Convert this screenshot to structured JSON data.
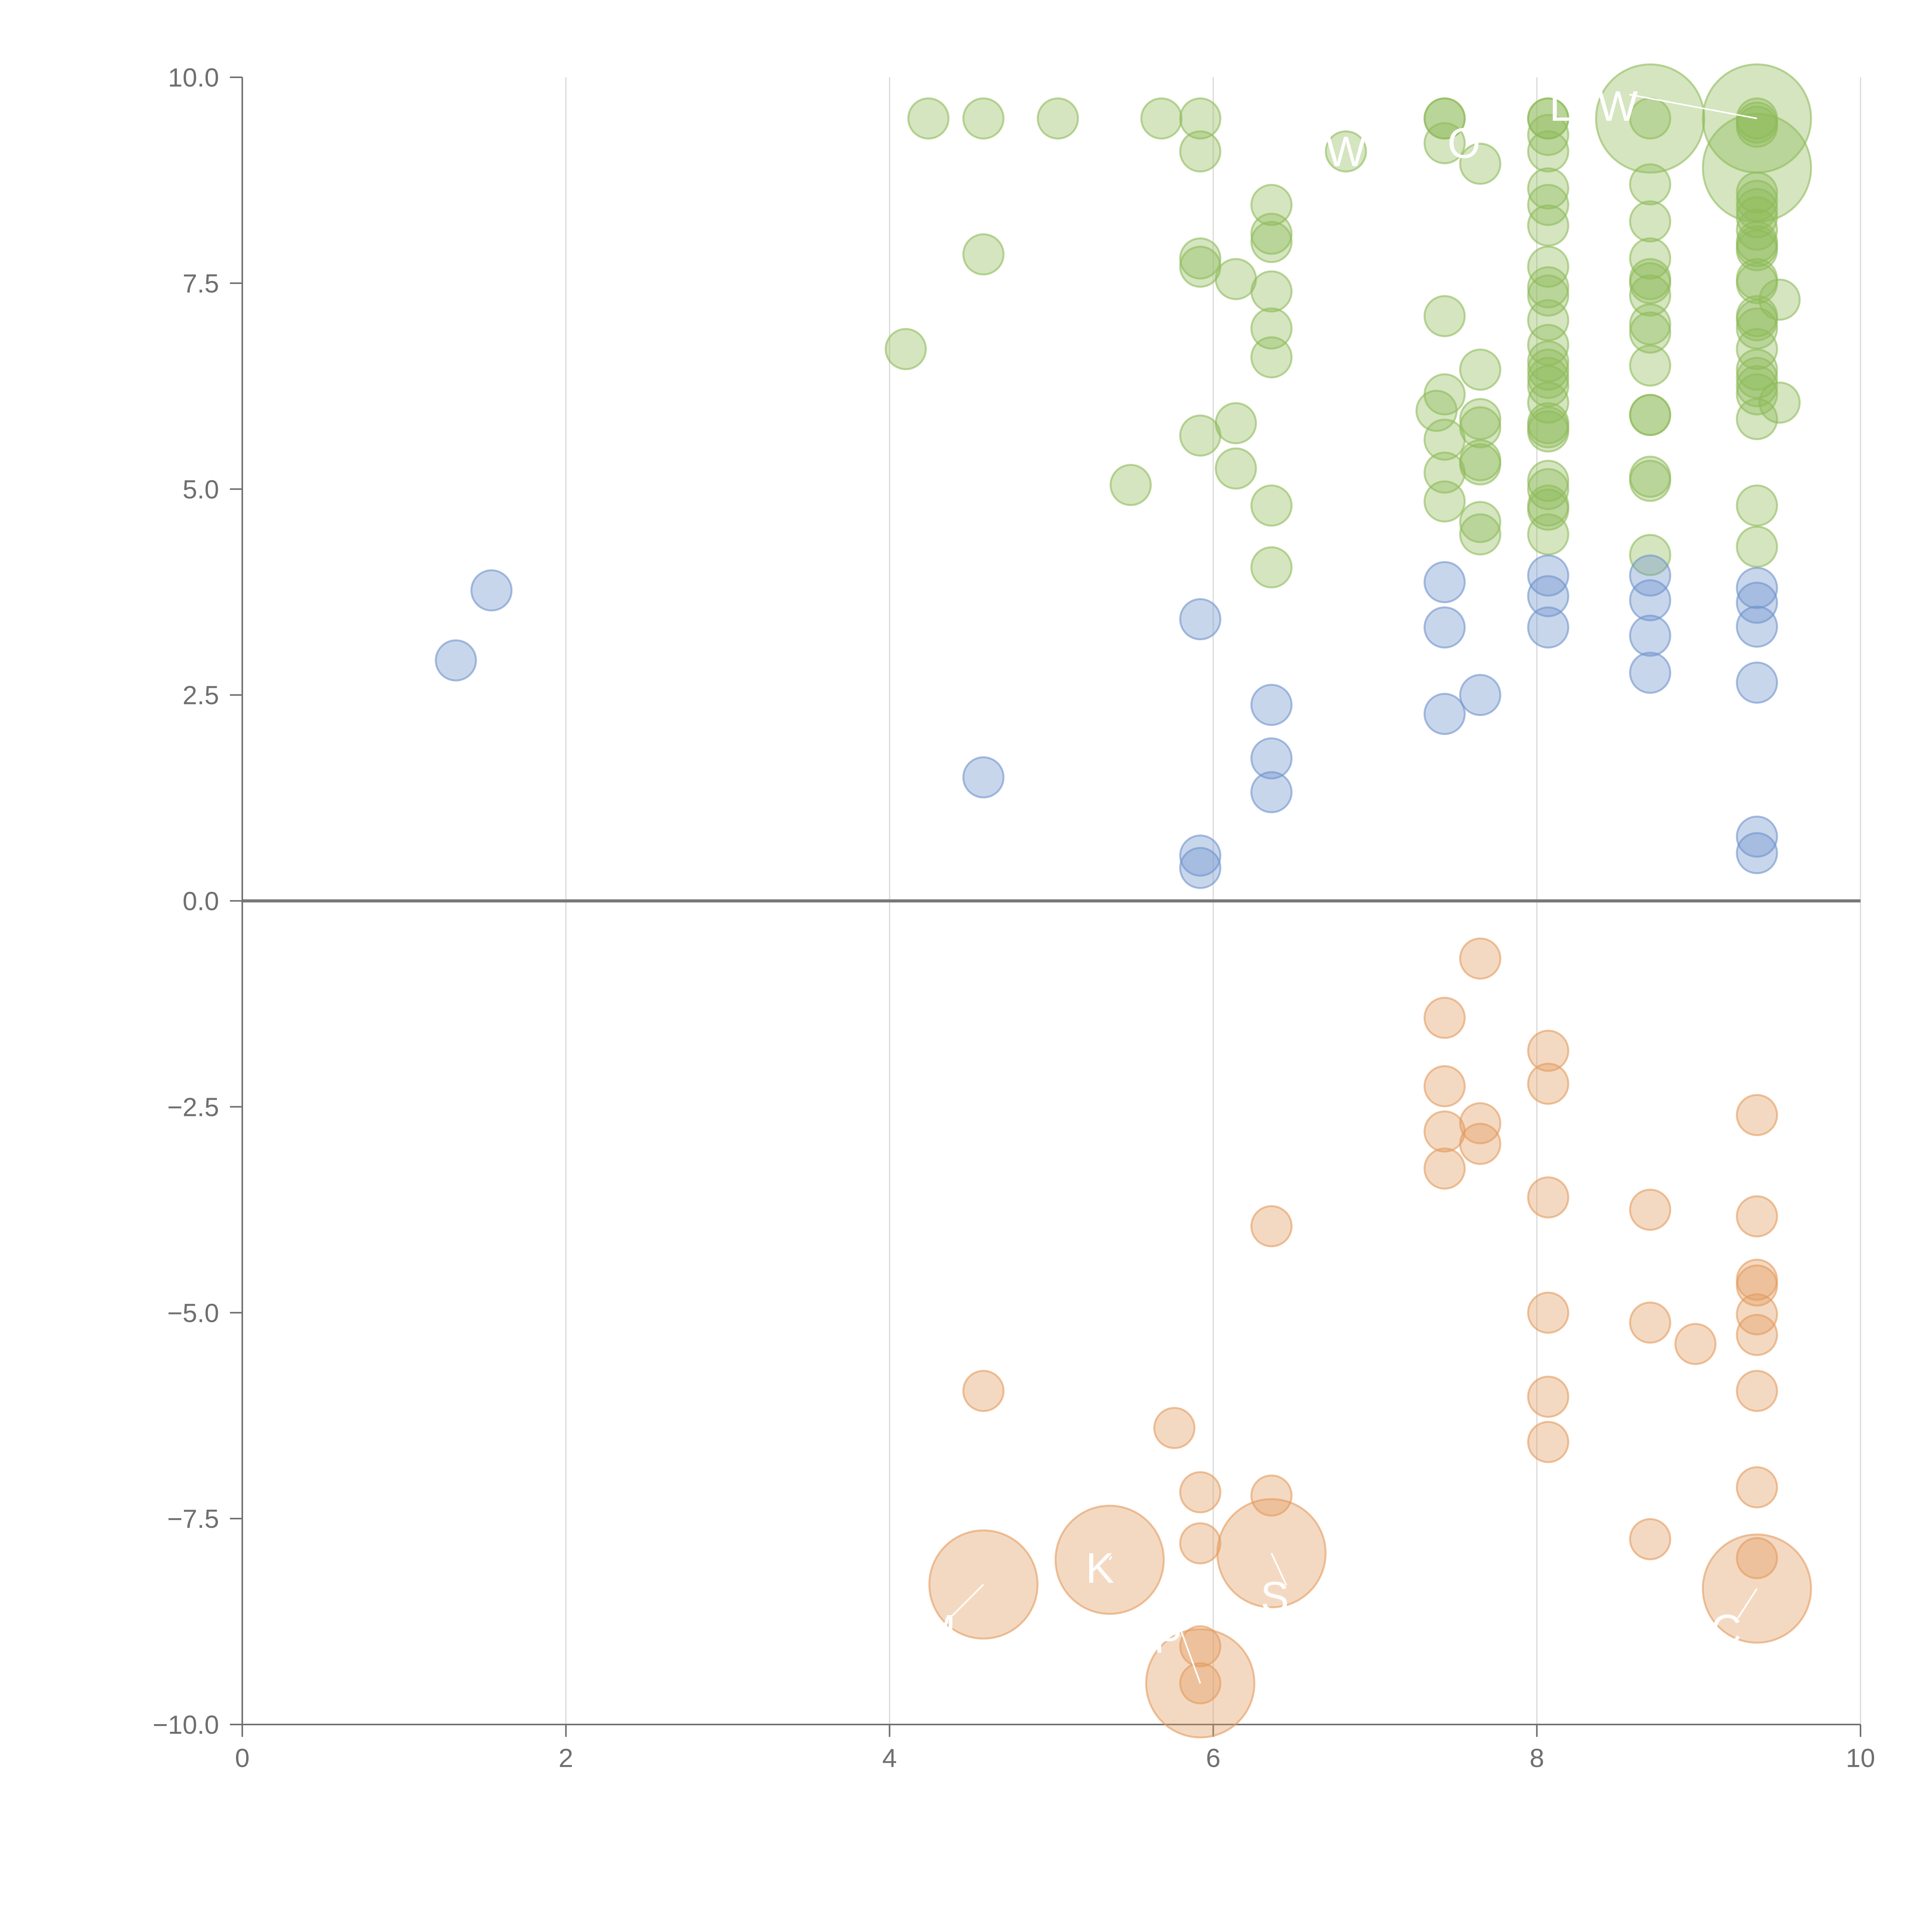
{
  "chart_data": {
    "type": "scatter",
    "title": "",
    "xlabel": "",
    "ylabel": "",
    "xlim": [
      0,
      10
    ],
    "ylim": [
      -10,
      10
    ],
    "x_ticks": [
      0,
      2,
      4,
      6,
      8,
      10
    ],
    "x_tick_labels": [
      "0",
      "2",
      "4",
      "6",
      "8",
      "10"
    ],
    "y_ticks": [
      10,
      7.5,
      5,
      2.5,
      0,
      -2.5,
      -5,
      -7.5,
      -10
    ],
    "y_tick_labels": [
      "10.0",
      "7.5",
      "5.0",
      "2.5",
      "0.0",
      "−2.5",
      "−5.0",
      "−7.5",
      "−10.0"
    ],
    "grid": "vertical",
    "zero_line": true,
    "legend": "none",
    "colors": {
      "green": "#8fba5a",
      "blue": "#6f93cc",
      "orange": "#e39b5e",
      "axis": "#6f6f6f",
      "grid": "#d9d9d9",
      "zero_line": "#777777"
    },
    "series": [
      {
        "color_key": "green",
        "points": [
          [
            4.24,
            9.5
          ],
          [
            4.58,
            9.5
          ],
          [
            5.04,
            9.5
          ],
          [
            5.68,
            9.5
          ],
          [
            5.92,
            9.5
          ],
          [
            5.92,
            9.1
          ],
          [
            4.58,
            7.85
          ],
          [
            5.92,
            7.8
          ],
          [
            5.92,
            7.7
          ],
          [
            6.14,
            7.55
          ],
          [
            6.36,
            8.45
          ],
          [
            6.36,
            8.1
          ],
          [
            6.36,
            8.0
          ],
          [
            6.36,
            7.4
          ],
          [
            6.36,
            6.95
          ],
          [
            6.36,
            6.6
          ],
          [
            4.1,
            6.7
          ],
          [
            5.92,
            5.65
          ],
          [
            6.14,
            5.8
          ],
          [
            6.14,
            5.25
          ],
          [
            5.49,
            5.05
          ],
          [
            6.36,
            4.8
          ],
          [
            6.36,
            4.05
          ],
          [
            6.82,
            9.1
          ],
          [
            7.43,
            9.5
          ],
          [
            7.43,
            9.5
          ],
          [
            7.43,
            9.2
          ],
          [
            7.65,
            8.95
          ],
          [
            7.43,
            7.1
          ],
          [
            7.65,
            6.45
          ],
          [
            7.43,
            6.15
          ],
          [
            7.38,
            5.95
          ],
          [
            7.43,
            5.6
          ],
          [
            7.65,
            5.85
          ],
          [
            7.65,
            5.75
          ],
          [
            7.65,
            5.35
          ],
          [
            7.65,
            5.3
          ],
          [
            7.43,
            5.2
          ],
          [
            7.43,
            4.85
          ],
          [
            7.65,
            4.6
          ],
          [
            7.65,
            4.45
          ],
          [
            8.07,
            9.5
          ],
          [
            8.07,
            9.5
          ],
          [
            8.07,
            9.3
          ],
          [
            8.07,
            9.1
          ],
          [
            8.07,
            8.65
          ],
          [
            8.07,
            8.45
          ],
          [
            8.07,
            8.2
          ],
          [
            8.07,
            7.7
          ],
          [
            8.07,
            7.45
          ],
          [
            8.07,
            7.35
          ],
          [
            8.07,
            7.05
          ],
          [
            8.07,
            6.75
          ],
          [
            8.07,
            6.55
          ],
          [
            8.07,
            6.45
          ],
          [
            8.07,
            6.35
          ],
          [
            8.07,
            6.25
          ],
          [
            8.07,
            6.05
          ],
          [
            8.07,
            5.8
          ],
          [
            8.07,
            5.75
          ],
          [
            8.07,
            5.7
          ],
          [
            8.07,
            5.1
          ],
          [
            8.07,
            5.0
          ],
          [
            8.07,
            4.8
          ],
          [
            8.07,
            4.75
          ],
          [
            8.07,
            4.45
          ],
          [
            8.7,
            9.5
          ],
          [
            8.7,
            8.7
          ],
          [
            8.7,
            8.25
          ],
          [
            8.7,
            7.8
          ],
          [
            8.7,
            7.55
          ],
          [
            8.7,
            7.5
          ],
          [
            8.7,
            7.35
          ],
          [
            8.7,
            7.0
          ],
          [
            8.7,
            6.9
          ],
          [
            8.7,
            6.5
          ],
          [
            8.7,
            5.9
          ],
          [
            8.7,
            5.9
          ],
          [
            8.7,
            5.15
          ],
          [
            8.7,
            5.1
          ],
          [
            8.7,
            4.2
          ],
          [
            9.36,
            9.5
          ],
          [
            9.36,
            9.45
          ],
          [
            9.36,
            9.4
          ],
          [
            9.36,
            8.6
          ],
          [
            9.36,
            8.5
          ],
          [
            9.36,
            8.4
          ],
          [
            9.36,
            8.3
          ],
          [
            9.36,
            8.15
          ],
          [
            9.36,
            8.0
          ],
          [
            9.36,
            7.95
          ],
          [
            9.36,
            7.9
          ],
          [
            9.36,
            7.55
          ],
          [
            9.36,
            7.5
          ],
          [
            9.36,
            7.1
          ],
          [
            9.36,
            7.05
          ],
          [
            9.36,
            6.95
          ],
          [
            9.36,
            6.7
          ],
          [
            9.36,
            6.45
          ],
          [
            9.36,
            6.35
          ],
          [
            9.36,
            6.25
          ],
          [
            9.36,
            6.15
          ],
          [
            9.36,
            5.85
          ],
          [
            9.36,
            4.8
          ],
          [
            9.36,
            4.3
          ],
          [
            9.5,
            7.3
          ],
          [
            9.5,
            6.05
          ]
        ],
        "large_points": [
          [
            8.7,
            9.5
          ],
          [
            9.36,
            9.5
          ],
          [
            9.36,
            8.9
          ]
        ]
      },
      {
        "color_key": "blue",
        "points": [
          [
            1.32,
            2.92
          ],
          [
            1.54,
            3.77
          ],
          [
            4.58,
            1.5
          ],
          [
            5.92,
            3.42
          ],
          [
            5.92,
            0.55
          ],
          [
            5.92,
            0.4
          ],
          [
            6.36,
            2.38
          ],
          [
            6.36,
            1.73
          ],
          [
            6.36,
            1.32
          ],
          [
            7.43,
            3.87
          ],
          [
            7.43,
            3.32
          ],
          [
            7.43,
            2.27
          ],
          [
            7.65,
            2.5
          ],
          [
            8.07,
            3.95
          ],
          [
            8.07,
            3.7
          ],
          [
            8.07,
            3.32
          ],
          [
            8.7,
            3.95
          ],
          [
            8.7,
            3.65
          ],
          [
            8.7,
            3.22
          ],
          [
            8.7,
            2.77
          ],
          [
            9.36,
            3.8
          ],
          [
            9.36,
            3.62
          ],
          [
            9.36,
            3.33
          ],
          [
            9.36,
            2.65
          ],
          [
            9.36,
            0.78
          ],
          [
            9.36,
            0.58
          ]
        ],
        "large_points": []
      },
      {
        "color_key": "orange",
        "points": [
          [
            4.58,
            -5.95
          ],
          [
            5.76,
            -6.4
          ],
          [
            5.92,
            -7.18
          ],
          [
            5.92,
            -7.8
          ],
          [
            5.92,
            -9.05
          ],
          [
            5.92,
            -9.5
          ],
          [
            6.36,
            -3.95
          ],
          [
            6.36,
            -7.22
          ],
          [
            7.43,
            -1.42
          ],
          [
            7.43,
            -2.25
          ],
          [
            7.43,
            -2.8
          ],
          [
            7.43,
            -3.25
          ],
          [
            7.65,
            -0.7
          ],
          [
            7.65,
            -2.7
          ],
          [
            7.65,
            -2.95
          ],
          [
            8.07,
            -1.82
          ],
          [
            8.07,
            -2.22
          ],
          [
            8.07,
            -3.6
          ],
          [
            8.07,
            -5.0
          ],
          [
            8.07,
            -6.02
          ],
          [
            8.07,
            -6.57
          ],
          [
            8.7,
            -3.75
          ],
          [
            8.7,
            -5.12
          ],
          [
            8.7,
            -7.75
          ],
          [
            8.98,
            -5.38
          ],
          [
            9.36,
            -2.6
          ],
          [
            9.36,
            -3.83
          ],
          [
            9.36,
            -4.6
          ],
          [
            9.36,
            -4.67
          ],
          [
            9.36,
            -5.02
          ],
          [
            9.36,
            -5.27
          ],
          [
            9.36,
            -5.95
          ],
          [
            9.36,
            -7.12
          ],
          [
            9.36,
            -7.98
          ]
        ],
        "large_points": [
          [
            4.58,
            -8.3
          ],
          [
            5.36,
            -8.0
          ],
          [
            5.92,
            -9.5
          ],
          [
            6.36,
            -7.92
          ],
          [
            9.36,
            -8.35
          ]
        ]
      }
    ],
    "annotations": [
      {
        "text": "W",
        "x": 6.82,
        "y": 9.1,
        "leader_to": null
      },
      {
        "text": "O",
        "x": 7.55,
        "y": 9.2,
        "leader_to": null
      },
      {
        "text": "L",
        "x": 8.15,
        "y": 9.65,
        "leader_to": null
      },
      {
        "text": "W",
        "x": 8.5,
        "y": 9.65,
        "leader_to": [
          9.36,
          9.5
        ]
      },
      {
        "text": "K",
        "x": 5.3,
        "y": -8.1,
        "leader_to": [
          5.36,
          -8.0
        ]
      },
      {
        "text": "M",
        "x": 4.3,
        "y": -8.85,
        "leader_to": [
          4.58,
          -8.3
        ]
      },
      {
        "text": "P",
        "x": 5.72,
        "y": -8.95,
        "leader_to": [
          5.92,
          -9.5
        ]
      },
      {
        "text": "S",
        "x": 6.38,
        "y": -8.45,
        "leader_to": [
          6.36,
          -7.92
        ]
      },
      {
        "text": "C",
        "x": 9.17,
        "y": -8.85,
        "leader_to": [
          9.36,
          -8.35
        ]
      }
    ]
  }
}
